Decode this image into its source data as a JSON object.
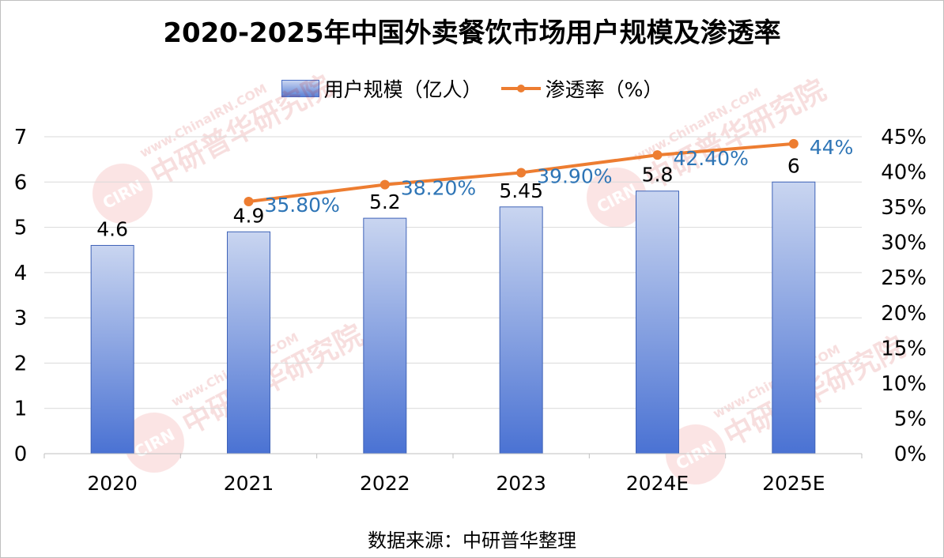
{
  "title": "2020-2025年中国外卖餐饮市场用户规模及渗透率",
  "source": "数据来源：中研普华整理",
  "watermark": {
    "logo_text": "CIRN",
    "site_text": "www.ChinaIRN.COM",
    "name_text": "中研普华研究院"
  },
  "colors": {
    "bar_top": "#c9d5f0",
    "bar_bottom": "#4a72d3",
    "bar_border": "#3f63b8",
    "line": "#ed7d31",
    "line_label": "#2e75b6",
    "axis_text": "#000000",
    "grid": "#d9d9d9"
  },
  "chart_data": {
    "type": "bar",
    "categories": [
      "2020",
      "2021",
      "2022",
      "2023",
      "2024E",
      "2025E"
    ],
    "series": [
      {
        "name": "用户规模（亿人）",
        "type": "bar",
        "axis": "left",
        "values": [
          4.6,
          4.9,
          5.2,
          5.45,
          5.8,
          6
        ],
        "labels": [
          "4.6",
          "4.9",
          "5.2",
          "5.45",
          "5.8",
          "6"
        ]
      },
      {
        "name": "渗透率（%）",
        "type": "line",
        "axis": "right",
        "values": [
          null,
          35.8,
          38.2,
          39.9,
          42.4,
          44
        ],
        "labels": [
          "",
          "35.80%",
          "38.20%",
          "39.90%",
          "42.40%",
          "44%"
        ]
      }
    ],
    "y_left": {
      "min": 0,
      "max": 7,
      "ticks": [
        "0",
        "1",
        "2",
        "3",
        "4",
        "5",
        "6",
        "7"
      ]
    },
    "y_right": {
      "min": 0,
      "max": 45,
      "ticks": [
        "0%",
        "5%",
        "10%",
        "15%",
        "20%",
        "25%",
        "30%",
        "35%",
        "40%",
        "45%"
      ]
    },
    "legend_position": "top-center",
    "grid": "horizontal"
  }
}
